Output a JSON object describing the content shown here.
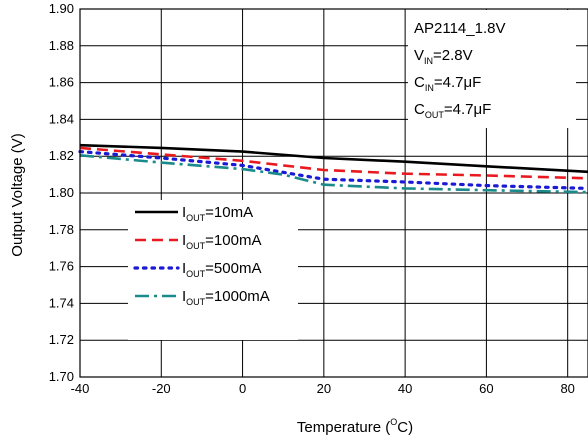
{
  "chart_data": {
    "type": "line",
    "xlabel": "Temperature (",
    "xlabel_sup": "O",
    "xlabel_end": "C)",
    "ylabel": "Output Voltage (V)",
    "xlim": [
      -40,
      85
    ],
    "ylim": [
      1.7,
      1.9
    ],
    "x_ticks": [
      -40,
      -20,
      0,
      20,
      40,
      60,
      80
    ],
    "y_ticks": [
      1.7,
      1.72,
      1.74,
      1.76,
      1.78,
      1.8,
      1.82,
      1.84,
      1.86,
      1.88,
      1.9
    ],
    "x_tick_labels": [
      "-40",
      "-20",
      "0",
      "20",
      "40",
      "60",
      "80"
    ],
    "y_tick_labels": [
      "1.70",
      "1.72",
      "1.74",
      "1.76",
      "1.78",
      "1.80",
      "1.82",
      "1.84",
      "1.86",
      "1.88",
      "1.90"
    ],
    "grid": true,
    "conditions": [
      {
        "main": "AP2114_1.8V",
        "sub": "",
        "tail": ""
      },
      {
        "main": "V",
        "sub": "IN",
        "tail": "=2.8V"
      },
      {
        "main": "C",
        "sub": "IN",
        "tail": "=4.7μF"
      },
      {
        "main": "C",
        "sub": "OUT",
        "tail": "=4.7μF"
      }
    ],
    "series": [
      {
        "name": "I_OUT=10mA",
        "legend_main": "I",
        "legend_sub": "OUT",
        "legend_tail": "=10mA",
        "color": "#000000",
        "dash": "solid",
        "x": [
          -40,
          -20,
          0,
          20,
          40,
          60,
          85
        ],
        "values": [
          1.826,
          1.8245,
          1.8225,
          1.819,
          1.817,
          1.8145,
          1.8115
        ]
      },
      {
        "name": "I_OUT=100mA",
        "legend_main": "I",
        "legend_sub": "OUT",
        "legend_tail": "=100mA",
        "color": "#e8191f",
        "dash": "dashed",
        "x": [
          -40,
          -20,
          0,
          20,
          40,
          60,
          85
        ],
        "values": [
          1.8245,
          1.821,
          1.8175,
          1.8125,
          1.8105,
          1.8095,
          1.808
        ]
      },
      {
        "name": "I_OUT=500mA",
        "legend_main": "I",
        "legend_sub": "OUT",
        "legend_tail": "=500mA",
        "color": "#1a1ad6",
        "dash": "dotted",
        "x": [
          -40,
          -20,
          0,
          20,
          40,
          60,
          85
        ],
        "values": [
          1.8225,
          1.819,
          1.815,
          1.8075,
          1.806,
          1.804,
          1.8025
        ]
      },
      {
        "name": "I_OUT=1000mA",
        "legend_main": "I",
        "legend_sub": "OUT",
        "legend_tail": "=1000mA",
        "color": "#1a8a8a",
        "dash": "dashdot",
        "x": [
          -40,
          -20,
          0,
          10,
          20,
          40,
          60,
          85
        ],
        "values": [
          1.8205,
          1.8165,
          1.813,
          1.81,
          1.8045,
          1.8025,
          1.8015,
          1.8005
        ]
      }
    ]
  }
}
